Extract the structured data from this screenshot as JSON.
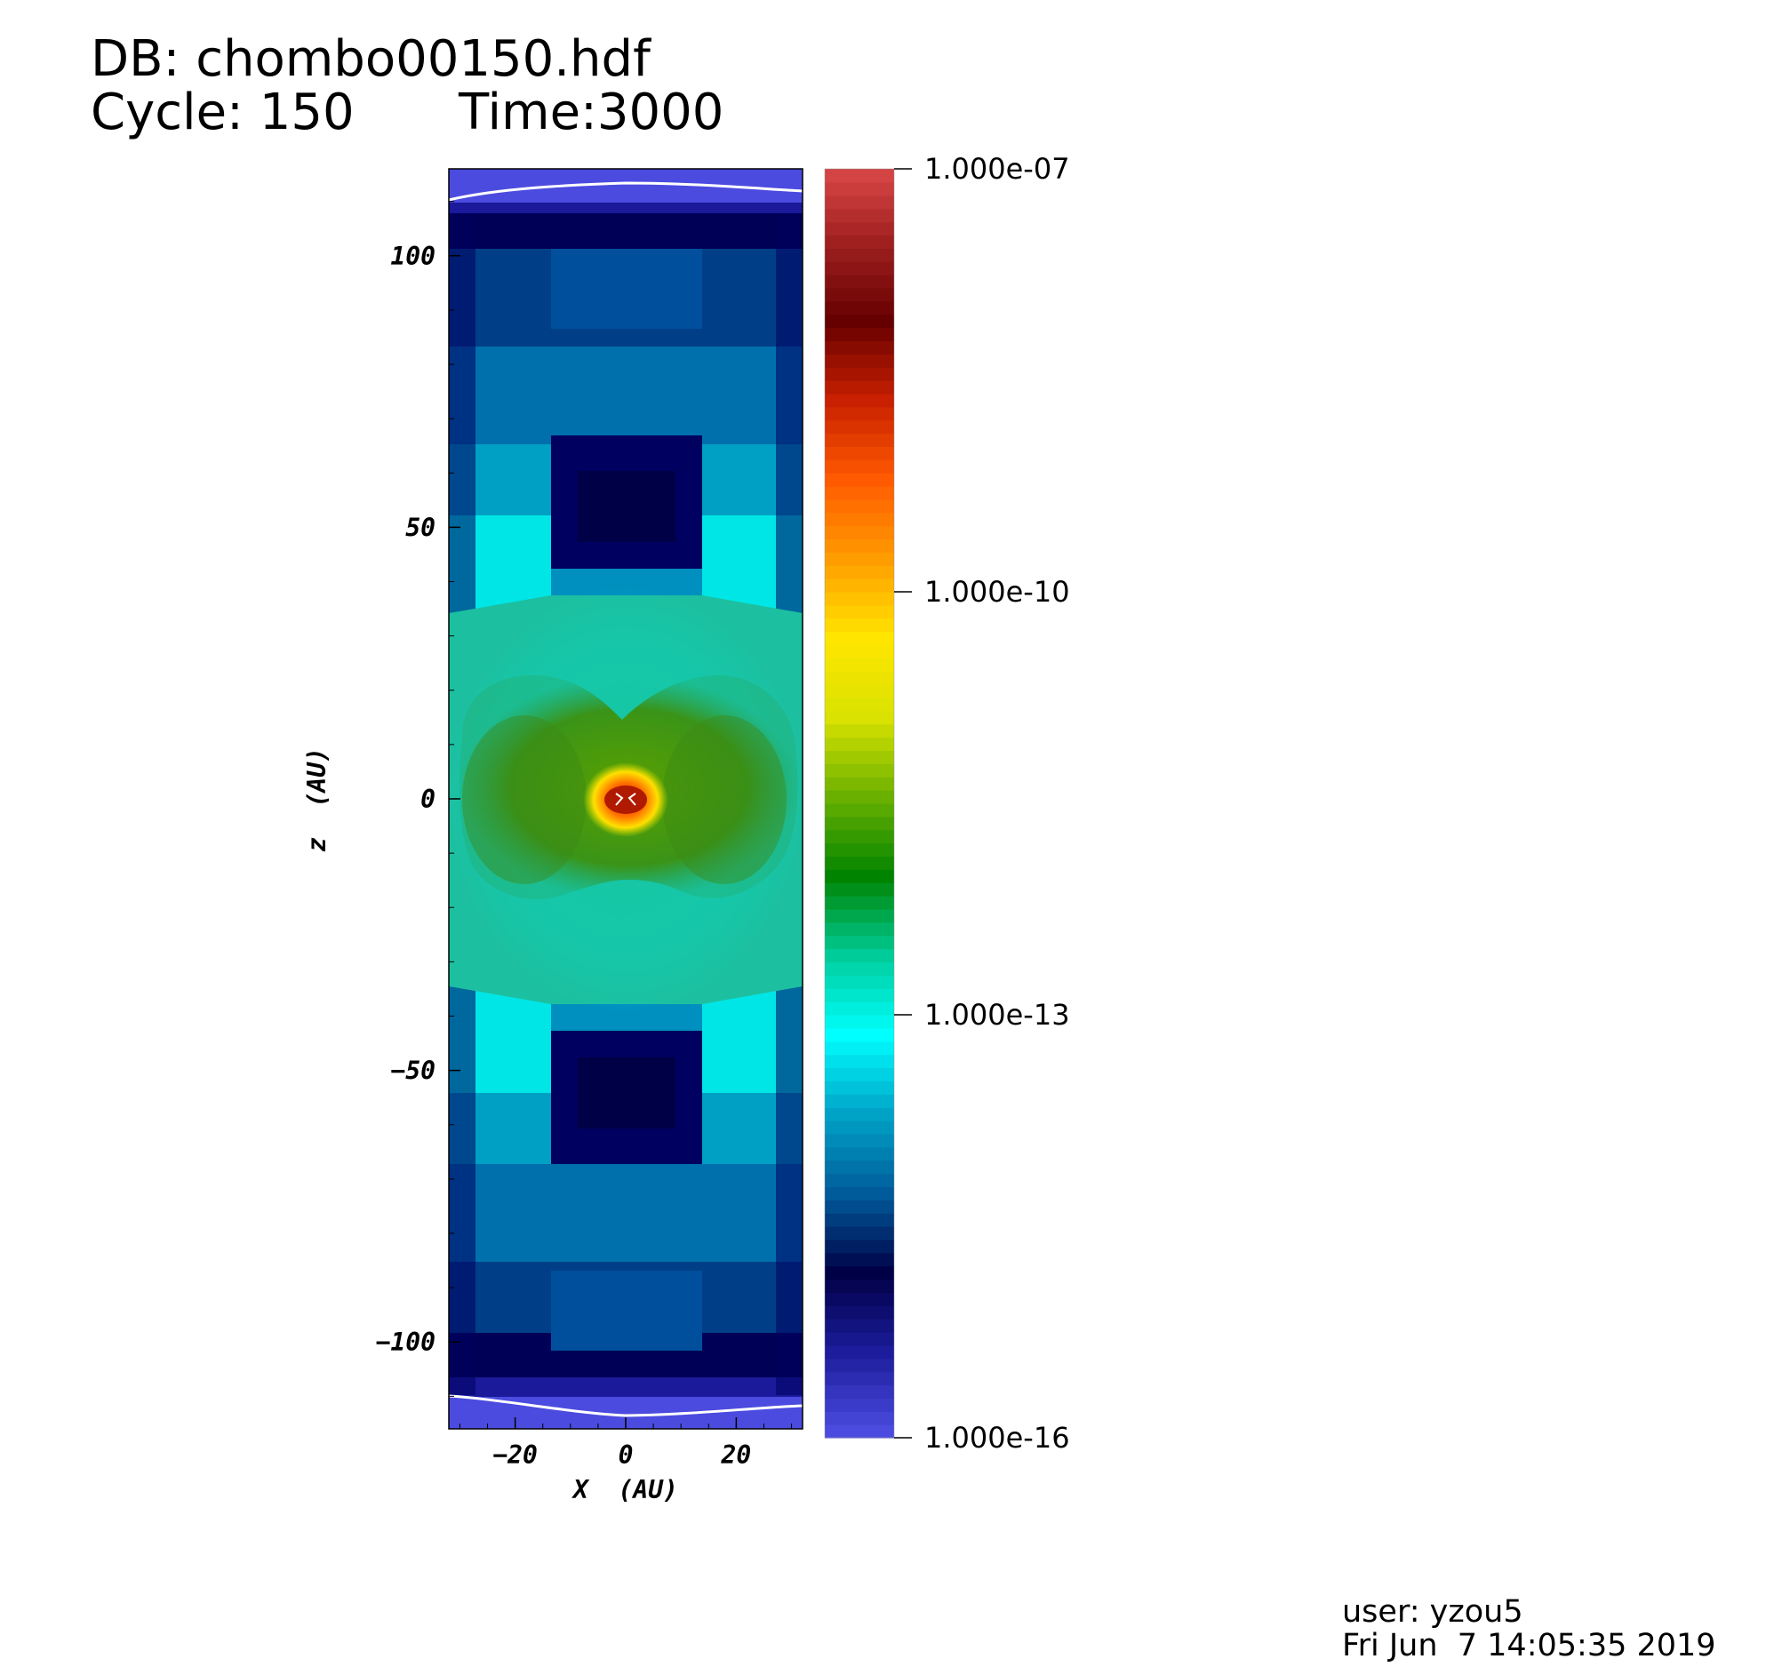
{
  "header": {
    "db_label": "DB: chombo00150.hdf",
    "cycle_label": "Cycle: 150",
    "time_label": "Time:3000"
  },
  "footer": {
    "user_label": "user: yzou5",
    "date_label": "Fri Jun  7 14:05:35 2019"
  },
  "chart_data": {
    "type": "heatmap",
    "xlabel": "X  (AU)",
    "ylabel": "z  (AU)",
    "xlim": [
      -32,
      32
    ],
    "ylim": [
      -116,
      116
    ],
    "xticks": [
      {
        "value": -20,
        "label": "−20"
      },
      {
        "value": 0,
        "label": "0"
      },
      {
        "value": 20,
        "label": "20"
      }
    ],
    "yticks": [
      {
        "value": 100,
        "label": "100"
      },
      {
        "value": 50,
        "label": "50"
      },
      {
        "value": 0,
        "label": "0"
      },
      {
        "value": -50,
        "label": "−50"
      },
      {
        "value": -100,
        "label": "−100"
      }
    ],
    "colorbar": {
      "scale": "log",
      "min": 1e-16,
      "max": 1e-07,
      "tick_labels": [
        {
          "value": 1e-07,
          "label": "1.000e-07"
        },
        {
          "value": 1e-10,
          "label": "1.000e-10"
        },
        {
          "value": 1e-13,
          "label": "1.000e-13"
        },
        {
          "value": 1e-16,
          "label": "1.000e-16"
        }
      ],
      "colors": [
        "#4b4bdf",
        "#1c1c9c",
        "#000046",
        "#005b9b",
        "#00a3c6",
        "#00ffff",
        "#00cc9a",
        "#008400",
        "#69b000",
        "#d9e200",
        "#ffe600",
        "#ff9c00",
        "#ff5a00",
        "#c82000",
        "#660000",
        "#a02020",
        "#e04b4b"
      ]
    }
  }
}
